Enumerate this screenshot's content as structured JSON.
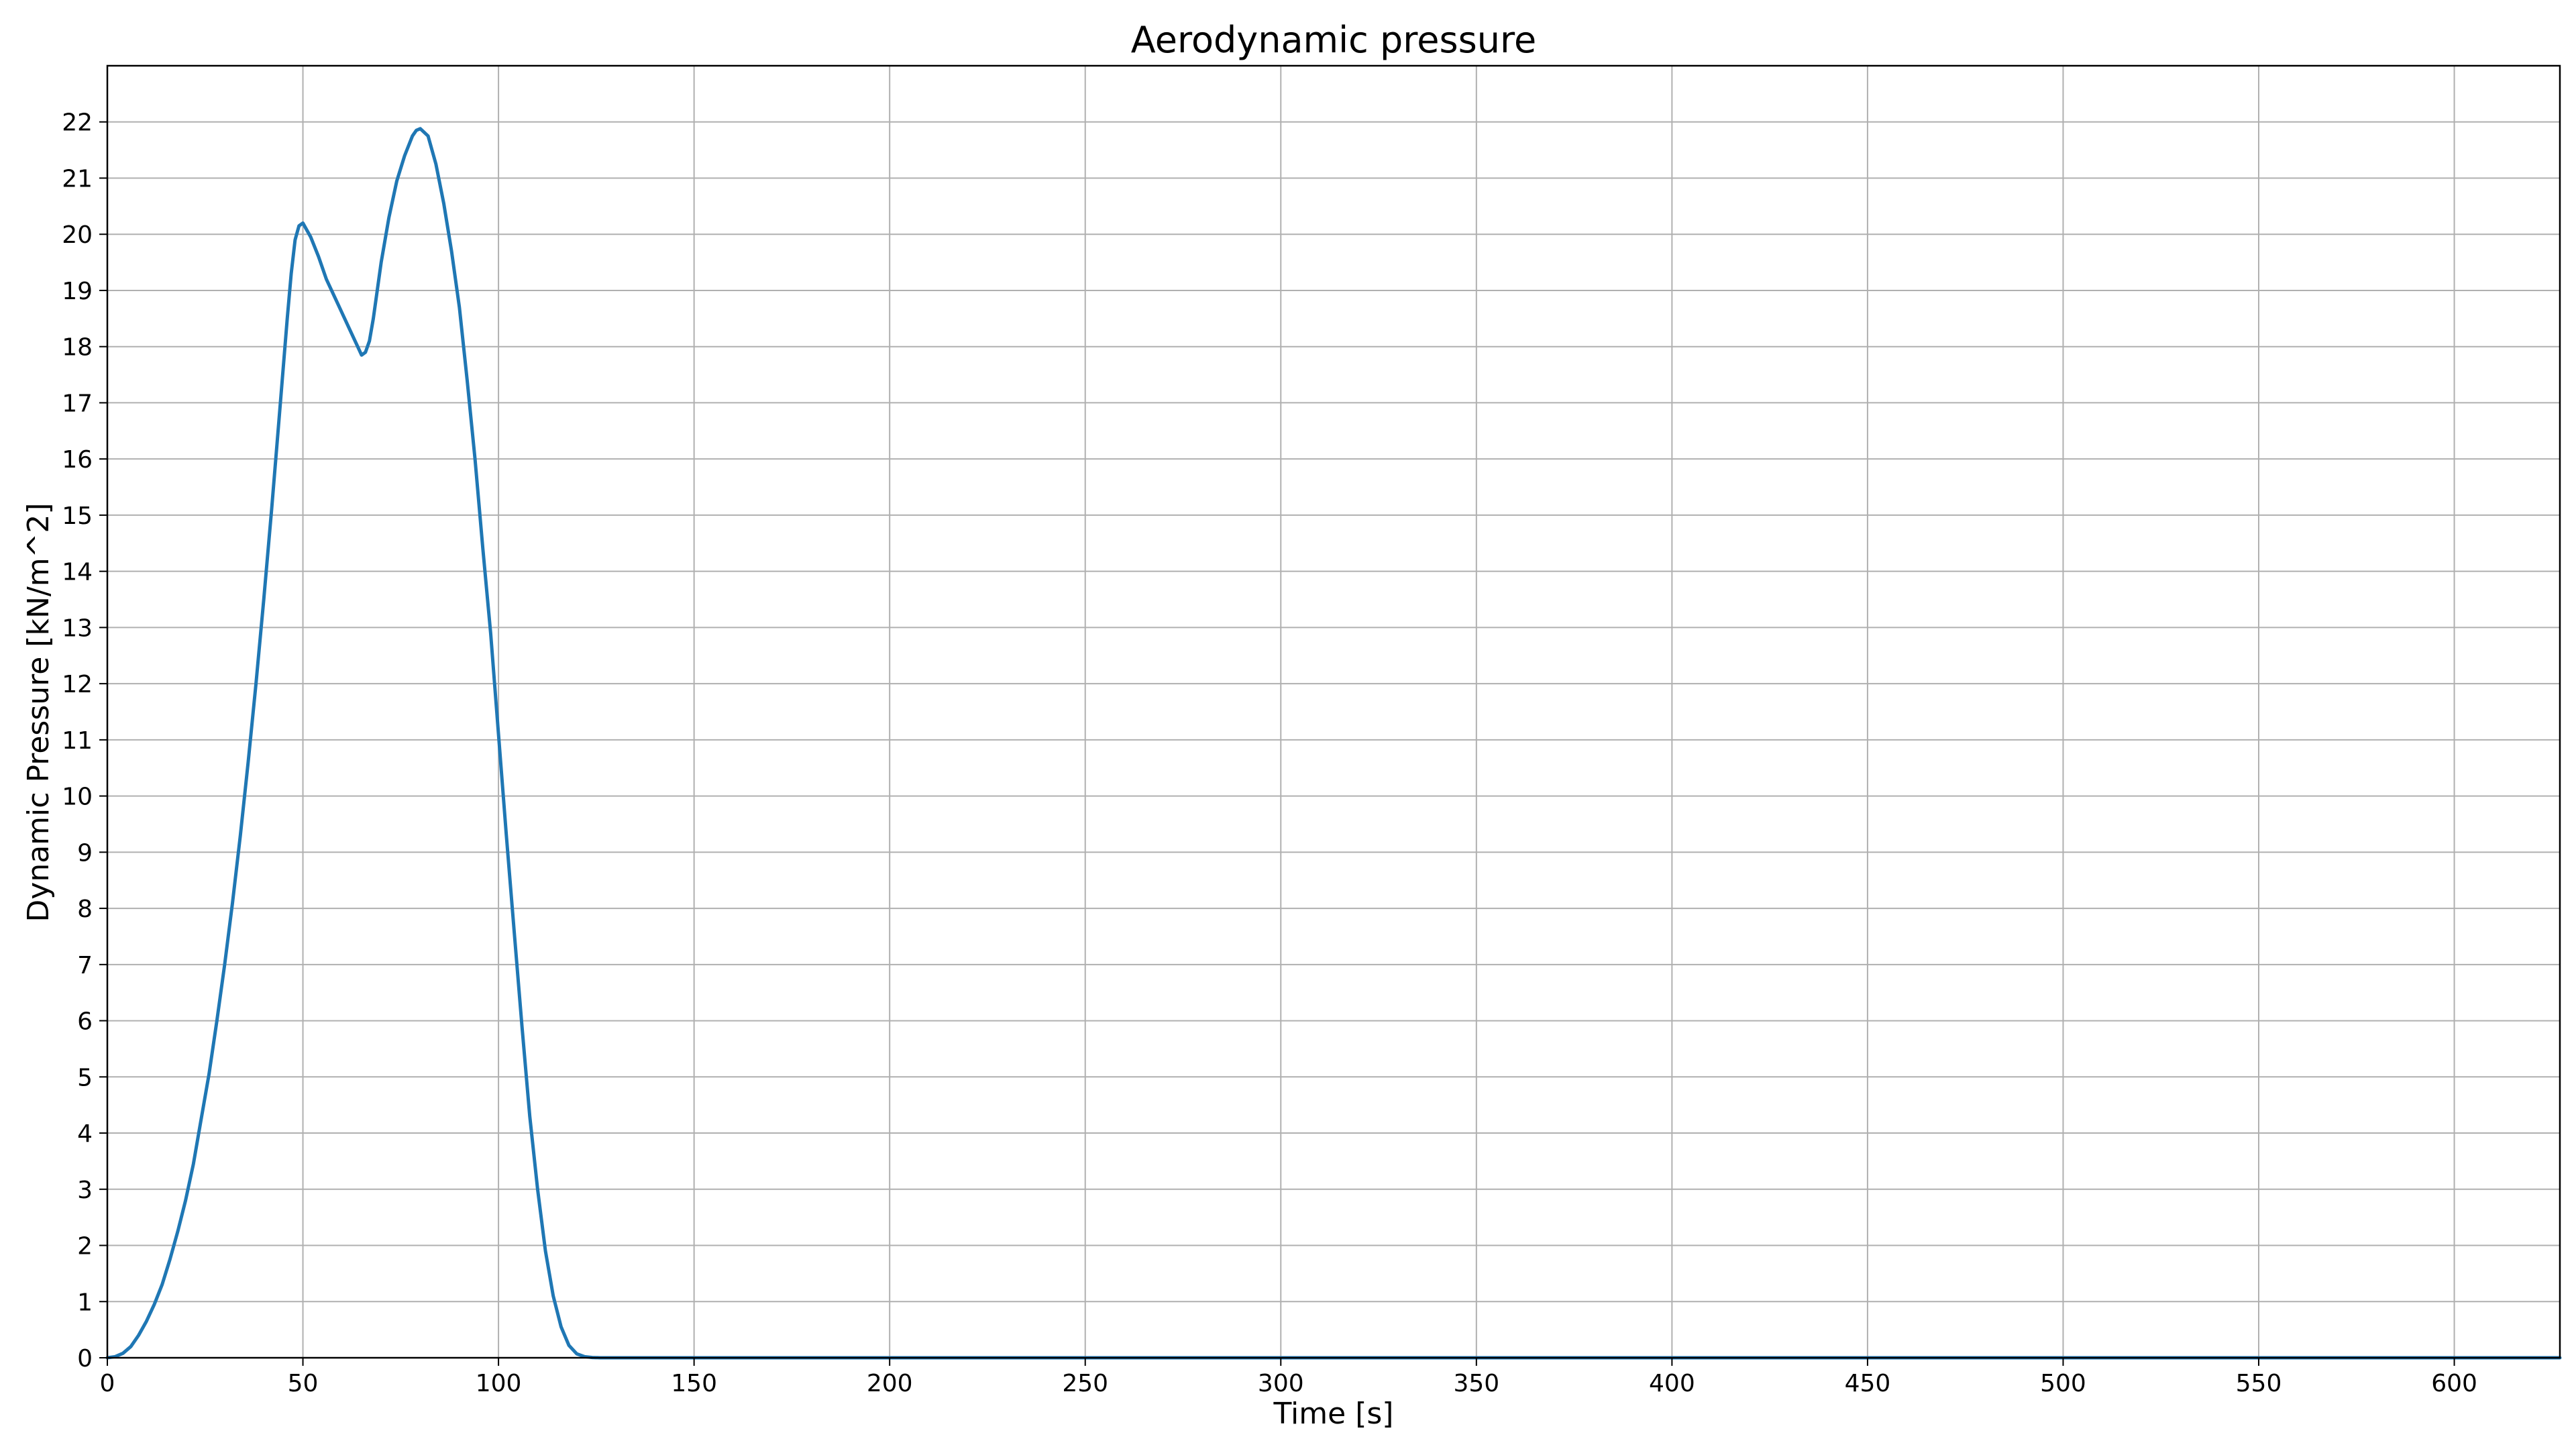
{
  "chart_data": {
    "type": "line",
    "title": "Aerodynamic pressure",
    "xlabel": "Time [s]",
    "ylabel": "Dynamic Pressure [kN/m^2]",
    "xlim": [
      0,
      627
    ],
    "ylim": [
      0,
      23
    ],
    "x_ticks": [
      0,
      50,
      100,
      150,
      200,
      250,
      300,
      350,
      400,
      450,
      500,
      550,
      600
    ],
    "y_ticks": [
      0,
      1,
      2,
      3,
      4,
      5,
      6,
      7,
      8,
      9,
      10,
      11,
      12,
      13,
      14,
      15,
      16,
      17,
      18,
      19,
      20,
      21,
      22
    ],
    "grid": true,
    "line_color": "#1f77b4",
    "series": [
      {
        "x": [
          0,
          2,
          4,
          6,
          8,
          10,
          12,
          14,
          16,
          18,
          20,
          22,
          24,
          26,
          28,
          30,
          32,
          34,
          36,
          38,
          40,
          42,
          44,
          46,
          47,
          48,
          49,
          50,
          52,
          54,
          56,
          58,
          60,
          62,
          64,
          65,
          66,
          67,
          68,
          70,
          72,
          74,
          76,
          78,
          79,
          80,
          82,
          84,
          86,
          88,
          90,
          92,
          94,
          96,
          98,
          100,
          102,
          104,
          106,
          108,
          110,
          112,
          114,
          116,
          118,
          120,
          122,
          124,
          126,
          130,
          200,
          300,
          400,
          500,
          600,
          627
        ],
        "y": [
          0,
          0.02,
          0.08,
          0.2,
          0.4,
          0.65,
          0.95,
          1.3,
          1.75,
          2.25,
          2.8,
          3.45,
          4.25,
          5.05,
          6.0,
          7.0,
          8.1,
          9.3,
          10.6,
          12.0,
          13.5,
          15.1,
          16.8,
          18.5,
          19.3,
          19.9,
          20.15,
          20.2,
          19.95,
          19.6,
          19.2,
          18.9,
          18.6,
          18.3,
          18.0,
          17.85,
          17.9,
          18.1,
          18.5,
          19.5,
          20.3,
          20.95,
          21.4,
          21.75,
          21.85,
          21.88,
          21.75,
          21.25,
          20.55,
          19.7,
          18.7,
          17.4,
          16.0,
          14.4,
          12.9,
          11.1,
          9.3,
          7.6,
          5.9,
          4.3,
          3.0,
          1.9,
          1.1,
          0.55,
          0.22,
          0.07,
          0.02,
          0.005,
          0,
          0,
          0,
          0,
          0,
          0,
          0,
          0
        ]
      }
    ]
  }
}
